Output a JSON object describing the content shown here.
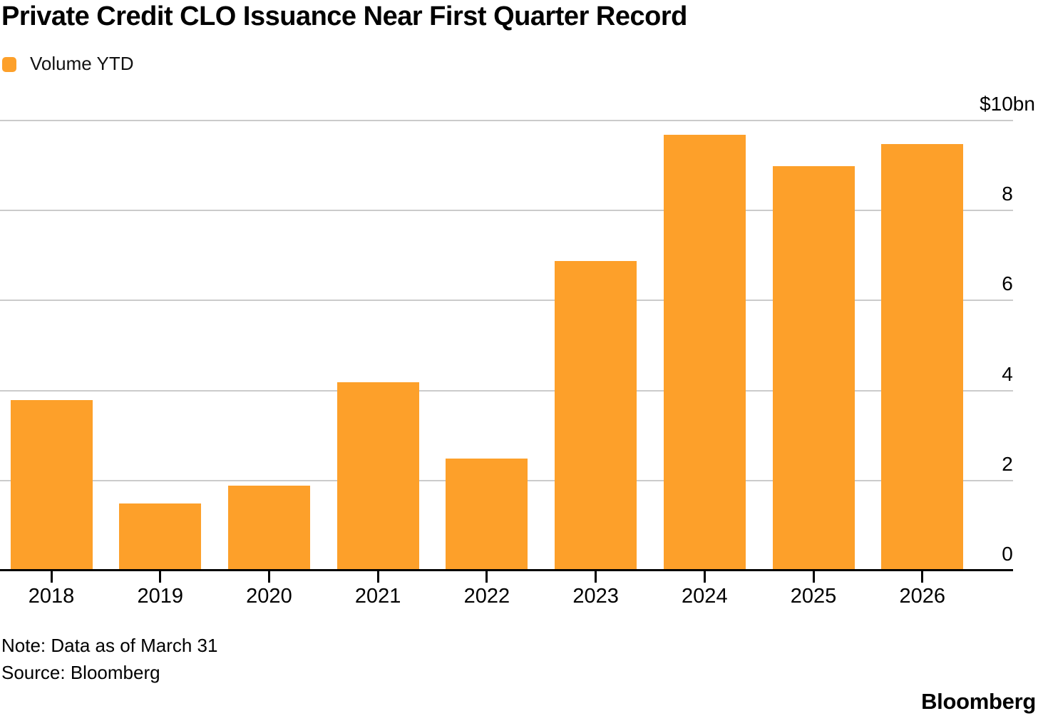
{
  "chart_data": {
    "type": "bar",
    "title": "Private Credit CLO Issuance Near First Quarter Record",
    "categories": [
      "2018",
      "2019",
      "2020",
      "2021",
      "2022",
      "2023",
      "2024",
      "2025",
      "2026"
    ],
    "values": [
      3.8,
      1.5,
      1.9,
      4.2,
      2.5,
      6.9,
      9.7,
      9.0,
      9.5
    ],
    "series_name": "Volume YTD",
    "ylim": [
      0,
      10
    ],
    "y_ticks": [
      {
        "value": 10,
        "label": "$10bn"
      },
      {
        "value": 8,
        "label": "8"
      },
      {
        "value": 6,
        "label": "6"
      },
      {
        "value": 4,
        "label": "4"
      },
      {
        "value": 2,
        "label": "2"
      },
      {
        "value": 0,
        "label": "0"
      }
    ],
    "grid": "horizontal",
    "legend_position": "top-left",
    "y_axis_side": "right"
  },
  "header": {
    "legend_label": "Volume YTD"
  },
  "footer": {
    "note": "Note: Data as of March 31",
    "source": "Source: Bloomberg",
    "brand": "Bloomberg"
  },
  "colors": {
    "bar": "#FDA02A",
    "grid": "#CBCBCB",
    "axis": "#000000",
    "background": "#FFFFFF",
    "text": "#000000"
  }
}
